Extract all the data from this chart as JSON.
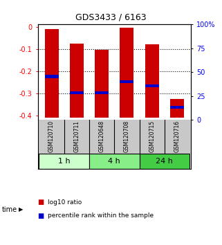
{
  "title": "GDS3433 / 6163",
  "samples": [
    "GSM120710",
    "GSM120711",
    "GSM120648",
    "GSM120708",
    "GSM120715",
    "GSM120716"
  ],
  "log10_top": [
    -0.01,
    -0.075,
    -0.105,
    -0.005,
    -0.08,
    -0.325
  ],
  "log10_bottom": [
    -0.41,
    -0.41,
    -0.41,
    -0.41,
    -0.41,
    -0.41
  ],
  "percentile_values": [
    -0.225,
    -0.298,
    -0.298,
    -0.248,
    -0.268,
    -0.365
  ],
  "ylim_left": [
    -0.42,
    0.01
  ],
  "yticks_left": [
    0,
    -0.1,
    -0.2,
    -0.3,
    -0.4
  ],
  "yticks_right": [
    0,
    25,
    50,
    75,
    100
  ],
  "yright_labels": [
    "0",
    "25",
    "50",
    "75",
    "100%"
  ],
  "bar_color": "#cc0000",
  "percentile_color": "#0000cc",
  "bar_width": 0.55,
  "groups": [
    {
      "label": "1 h",
      "samples": [
        0,
        1
      ],
      "color": "#ccffcc"
    },
    {
      "label": "4 h",
      "samples": [
        2,
        3
      ],
      "color": "#88ee88"
    },
    {
      "label": "24 h",
      "samples": [
        4,
        5
      ],
      "color": "#44cc44"
    }
  ],
  "legend_red": "log10 ratio",
  "legend_blue": "percentile rank within the sample",
  "xlabel_time": "time",
  "background_color": "#ffffff",
  "panel_bg": "#c8c8c8"
}
